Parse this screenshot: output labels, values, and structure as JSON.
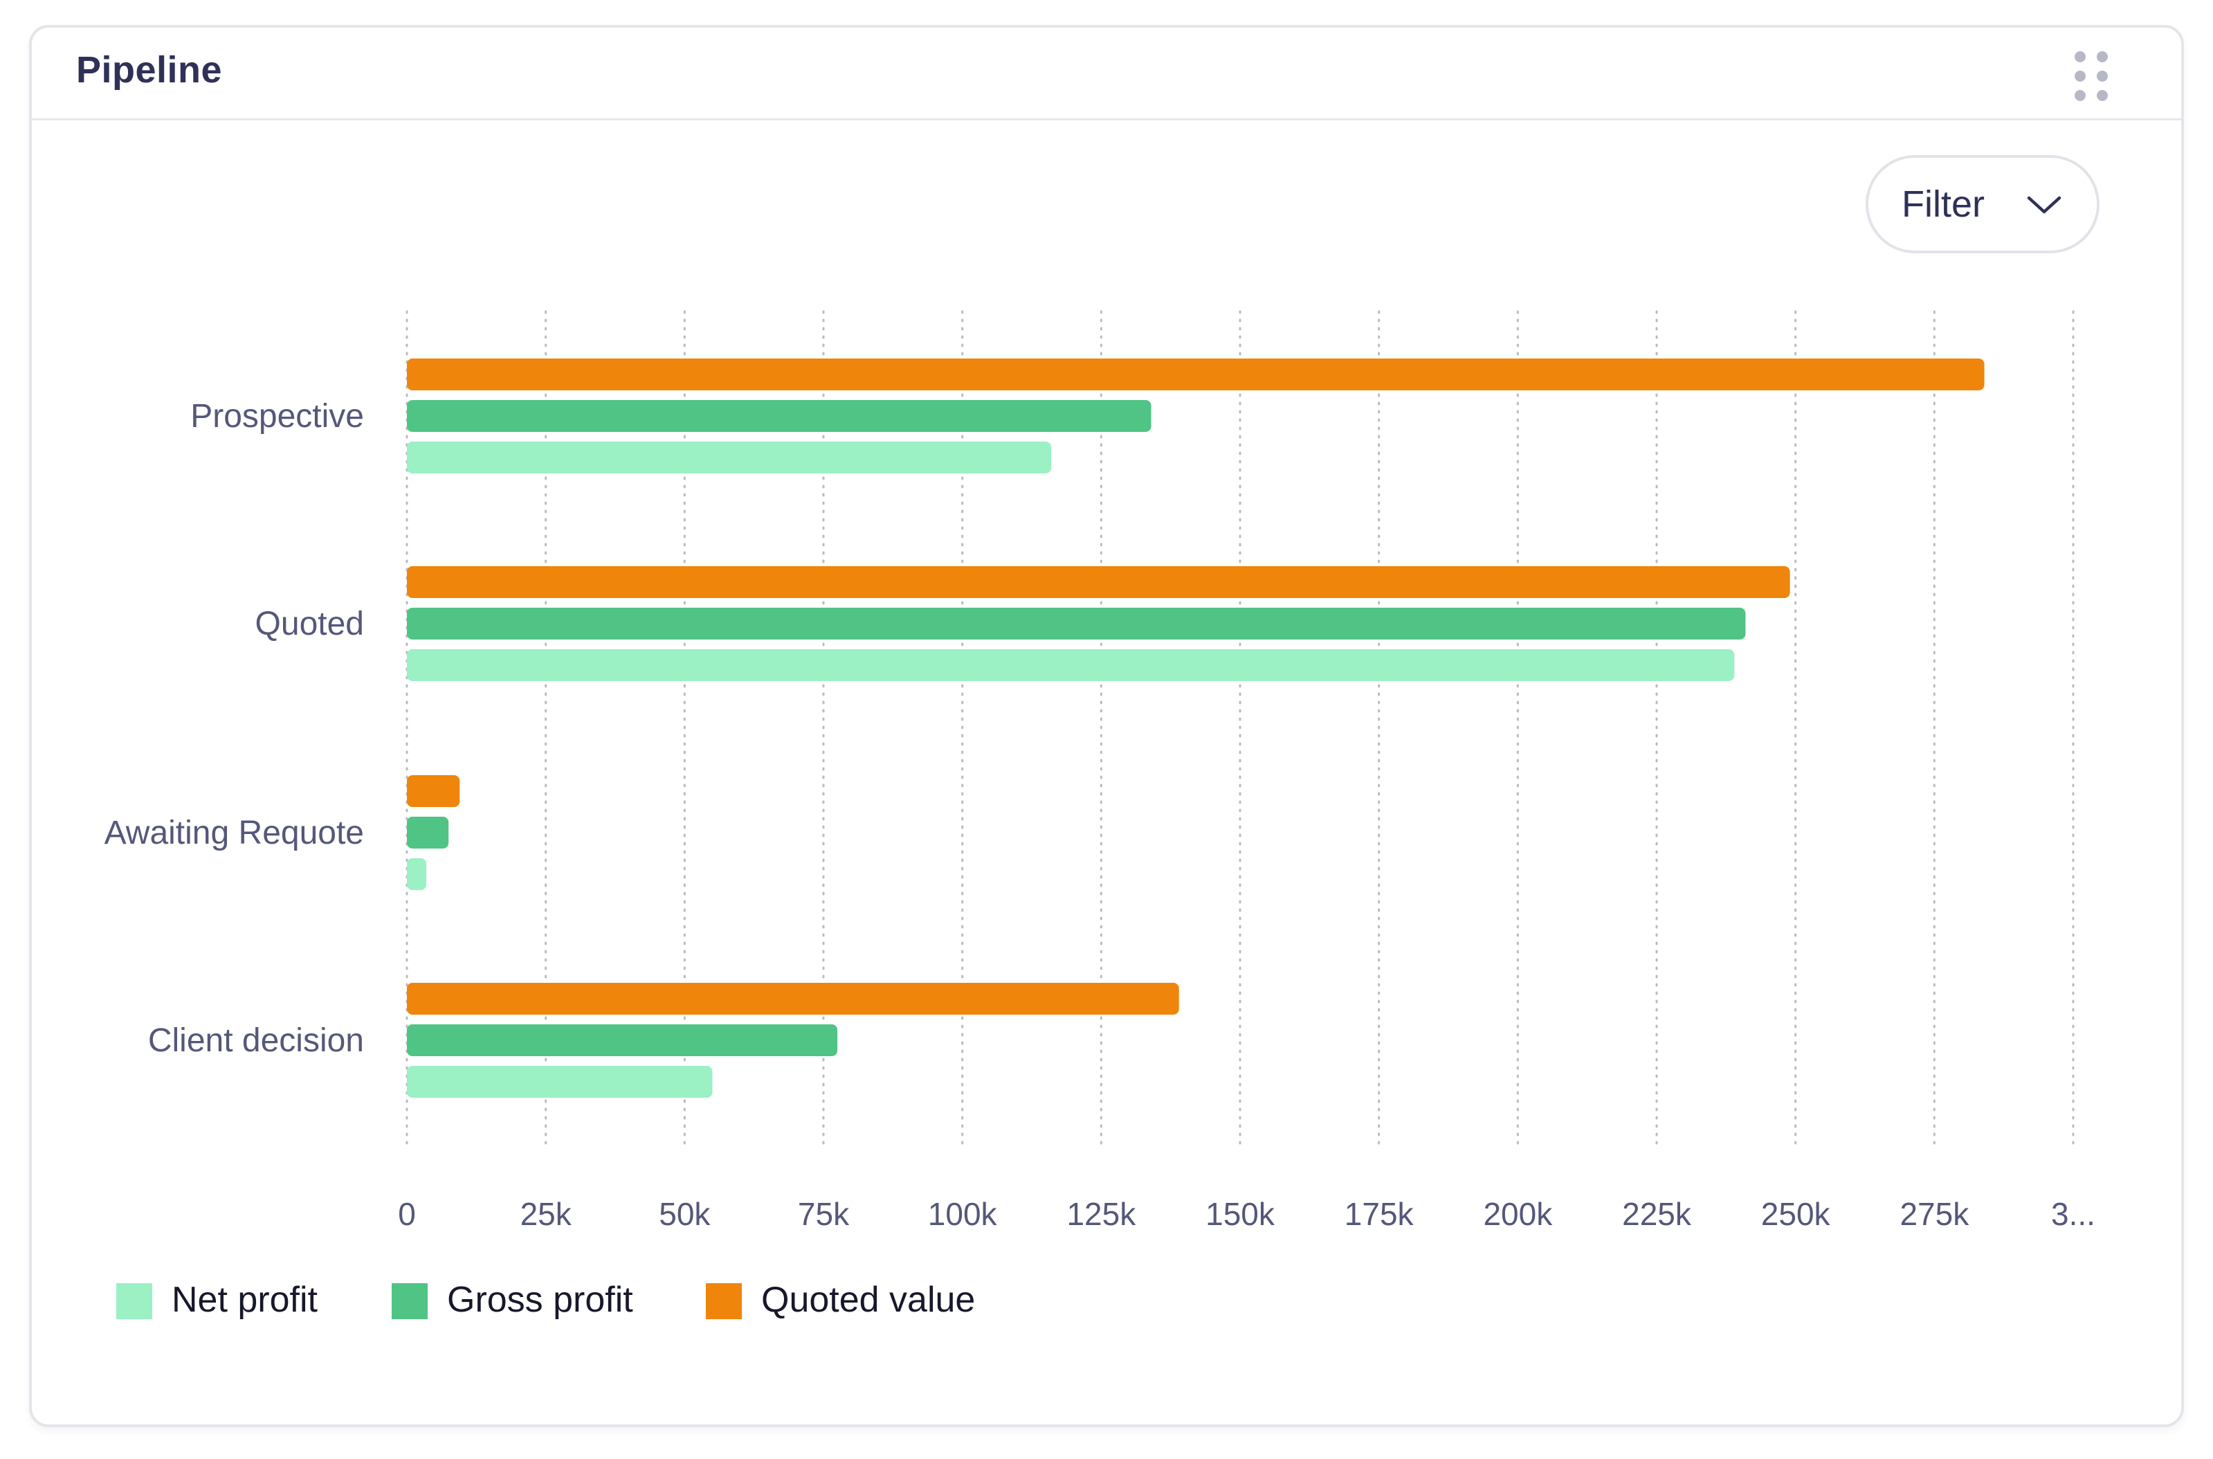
{
  "card": {
    "title": "Pipeline",
    "drag_icon": "drag-handle-icon"
  },
  "filter": {
    "label": "Filter",
    "icon": "chevron-down-icon"
  },
  "colors": {
    "net_profit": "#9bf0c4",
    "gross_profit": "#4fc485",
    "quoted_value": "#ef850b",
    "text": "#2f3158",
    "axis_text": "#55577a",
    "grid": "#b9bac4"
  },
  "chart_data": {
    "type": "bar",
    "orientation": "horizontal",
    "categories": [
      "Prospective",
      "Quoted",
      "Awaiting Requote",
      "Client decision"
    ],
    "series": [
      {
        "name": "Quoted value",
        "color": "#ef850b",
        "values": [
          284000,
          249000,
          9500,
          139000
        ]
      },
      {
        "name": "Gross profit",
        "color": "#4fc485",
        "values": [
          134000,
          241000,
          7500,
          77500
        ]
      },
      {
        "name": "Net profit",
        "color": "#9bf0c4",
        "values": [
          116000,
          239000,
          3500,
          55000
        ]
      }
    ],
    "x_ticks": [
      "0",
      "25k",
      "50k",
      "75k",
      "100k",
      "125k",
      "150k",
      "175k",
      "200k",
      "225k",
      "250k",
      "275k",
      "3..."
    ],
    "xlim": [
      0,
      300000
    ],
    "grid": "vertical dotted",
    "legend": {
      "position": "bottom-left",
      "items": [
        "Net profit",
        "Gross profit",
        "Quoted value"
      ]
    }
  }
}
